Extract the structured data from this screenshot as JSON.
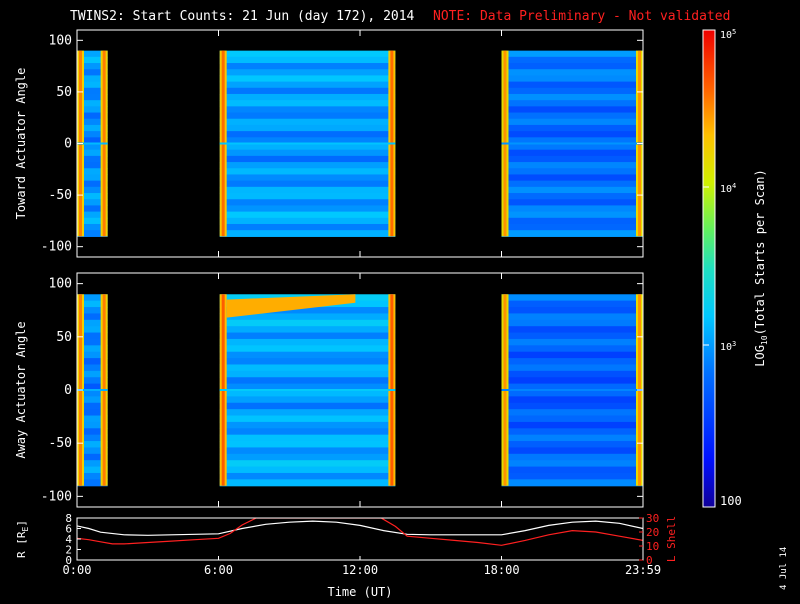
{
  "title": {
    "main": "TWINS2: Start Counts: 21 Jun (day 172), 2014",
    "note": "NOTE: Data Preliminary - Not validated",
    "note_color": "#ff2020"
  },
  "colors": {
    "background": "#000000",
    "axes": "#ffffff",
    "r_line": "#ffffff",
    "lshell_line": "#ff2020"
  },
  "colorbar": {
    "label_prefix": "LOG",
    "label_sub": "10",
    "label_suffix": "(Total Starts per Scan)",
    "tick_labels": [
      "100",
      "10",
      "10",
      "10"
    ],
    "tick_exponents": [
      "",
      "3",
      "4",
      "5"
    ],
    "scale": "log",
    "range": [
      100,
      100000
    ]
  },
  "date_stamp": "4 Jul 14",
  "chart_data": [
    {
      "type": "heatmap",
      "ylabel": "Toward Actuator Angle",
      "ylim": [
        -110,
        110
      ],
      "yticks": [
        -100,
        -50,
        0,
        50,
        100
      ],
      "xlim": [
        0,
        24
      ],
      "data_intervals": [
        {
          "start": 0.0,
          "end": 1.3,
          "level": 1000,
          "edge_level": 35000
        },
        {
          "start": 6.05,
          "end": 13.5,
          "level": 1100,
          "edge_level": 40000
        },
        {
          "start": 18.0,
          "end": 24.0,
          "level": 700,
          "edge_level": 30000
        }
      ],
      "angle_range": [
        -90,
        90
      ]
    },
    {
      "type": "heatmap",
      "ylabel": "Away Actuator Angle",
      "ylim": [
        -110,
        110
      ],
      "yticks": [
        -100,
        -50,
        0,
        50,
        100
      ],
      "xlim": [
        0,
        24
      ],
      "data_intervals": [
        {
          "start": 0.0,
          "end": 1.3,
          "level": 900,
          "edge_level": 35000
        },
        {
          "start": 6.05,
          "end": 13.5,
          "level": 1200,
          "edge_level": 45000
        },
        {
          "start": 18.0,
          "end": 24.0,
          "level": 600,
          "edge_level": 30000
        }
      ],
      "angle_range": [
        -90,
        90
      ]
    },
    {
      "type": "line",
      "ylabel": "R [R",
      "ylabel_sub": "E",
      "ylabel_suffix": "]",
      "ylabel_right": "L Shell",
      "yticks_left": [
        0,
        2,
        4,
        6,
        8
      ],
      "yticks_right": [
        0,
        10,
        20,
        30
      ],
      "ylim_left": [
        0,
        8
      ],
      "ylim_right": [
        0,
        30
      ],
      "xlabel": "Time (UT)",
      "xlim": [
        0,
        24
      ],
      "xticks": [
        0,
        6,
        12,
        18,
        24
      ],
      "xtick_labels": [
        "0:00",
        "6:00",
        "12:00",
        "18:00",
        "23:59"
      ],
      "series": [
        {
          "axis": "left",
          "x": [
            0,
            0.5,
            1,
            2,
            3,
            4,
            5,
            6,
            7,
            8,
            9,
            10,
            11,
            12,
            13,
            14,
            15,
            16,
            17,
            18,
            19,
            20,
            21,
            22,
            23,
            24
          ],
          "y": [
            6.5,
            6.0,
            5.3,
            4.8,
            4.7,
            4.8,
            4.9,
            5.0,
            6.0,
            6.8,
            7.2,
            7.4,
            7.2,
            6.6,
            5.6,
            4.9,
            4.8,
            4.8,
            4.8,
            4.8,
            5.6,
            6.6,
            7.2,
            7.4,
            7.0,
            6.0
          ]
        },
        {
          "axis": "right",
          "x": [
            0,
            0.5,
            1,
            1.5,
            2,
            3,
            4,
            5,
            6,
            6.5,
            7,
            7.6,
            12.9,
            13.5,
            14,
            15,
            16,
            17,
            18,
            19,
            20,
            21,
            22,
            23,
            24
          ],
          "y": [
            15.5,
            14.5,
            13,
            11.5,
            11.5,
            12.5,
            13.5,
            14.5,
            15.5,
            19,
            25,
            30,
            30,
            24,
            17,
            15.5,
            14,
            12.5,
            10.5,
            14,
            18,
            21,
            20,
            17,
            14
          ]
        }
      ]
    }
  ]
}
